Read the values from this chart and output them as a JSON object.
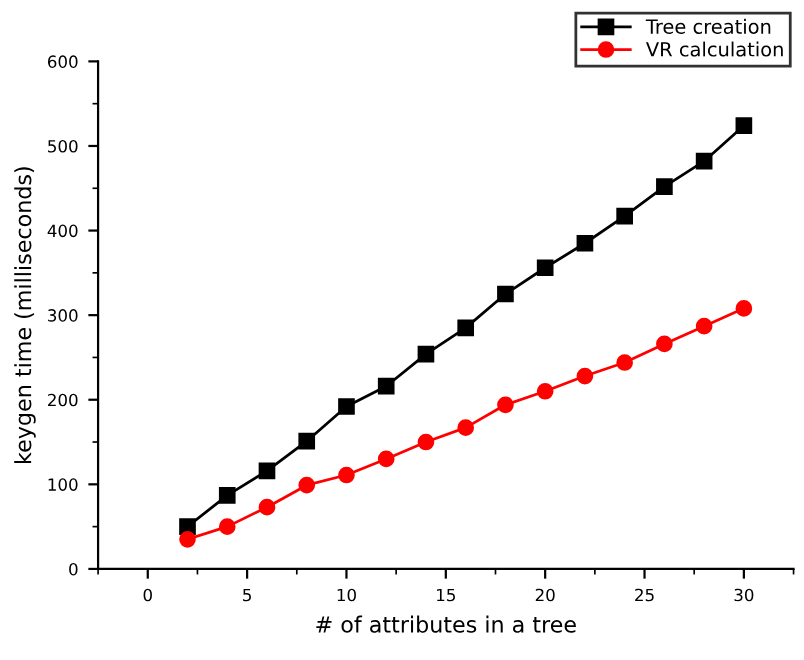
{
  "chart_data": {
    "type": "line",
    "xlabel": "# of attributes in a tree",
    "ylabel": "keygen time (milliseconds)",
    "x": [
      2,
      4,
      6,
      8,
      10,
      12,
      14,
      16,
      18,
      20,
      22,
      24,
      26,
      28,
      30
    ],
    "series": [
      {
        "name": "Tree creation",
        "color": "#000000",
        "marker": "square",
        "values": [
          50,
          87,
          116,
          151,
          192,
          216,
          254,
          285,
          325,
          356,
          385,
          417,
          452,
          482,
          524
        ]
      },
      {
        "name": "VR calculation",
        "color": "#ff0000",
        "marker": "circle",
        "values": [
          35,
          50,
          73,
          99,
          111,
          130,
          150,
          167,
          194,
          210,
          228,
          244,
          266,
          287,
          308
        ]
      }
    ],
    "xlim": [
      -2.5,
      32.5
    ],
    "xticks": [
      0,
      5,
      10,
      15,
      20,
      25,
      30
    ],
    "ylim": [
      0,
      600
    ],
    "yticks": [
      0,
      100,
      200,
      300,
      400,
      500,
      600
    ],
    "grid": false,
    "legend": "top right",
    "line_style": "solid"
  }
}
